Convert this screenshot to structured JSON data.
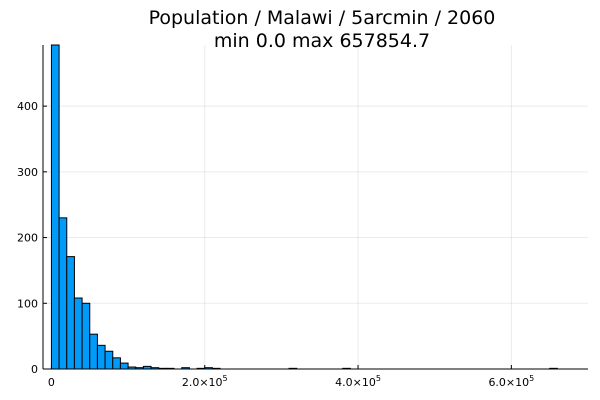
{
  "chart_data": {
    "type": "bar",
    "title_lines": [
      "Population / Malawi / 5arcmin / 2060",
      "min 0.0  max 657854.7"
    ],
    "xlabel": "",
    "ylabel": "",
    "bar_color": "#009af9",
    "bin_width": 10000,
    "xlim": [
      -11000,
      700000
    ],
    "ylim": [
      0,
      493
    ],
    "grid": true,
    "legend": "none",
    "x_ticks": [
      {
        "value": 0,
        "mantissa": "0",
        "exponent": ""
      },
      {
        "value": 200000,
        "mantissa": "2.0×10",
        "exponent": "5"
      },
      {
        "value": 400000,
        "mantissa": "4.0×10",
        "exponent": "5"
      },
      {
        "value": 600000,
        "mantissa": "6.0×10",
        "exponent": "5"
      }
    ],
    "y_ticks": [
      0,
      100,
      200,
      300,
      400
    ],
    "bins": [
      {
        "x": 0,
        "count": 493
      },
      {
        "x": 10000,
        "count": 230
      },
      {
        "x": 20000,
        "count": 171
      },
      {
        "x": 30000,
        "count": 108
      },
      {
        "x": 40000,
        "count": 100
      },
      {
        "x": 50000,
        "count": 53
      },
      {
        "x": 60000,
        "count": 36
      },
      {
        "x": 70000,
        "count": 27
      },
      {
        "x": 80000,
        "count": 17
      },
      {
        "x": 90000,
        "count": 9
      },
      {
        "x": 100000,
        "count": 3
      },
      {
        "x": 110000,
        "count": 2
      },
      {
        "x": 120000,
        "count": 4
      },
      {
        "x": 130000,
        "count": 2
      },
      {
        "x": 140000,
        "count": 1
      },
      {
        "x": 150000,
        "count": 1
      },
      {
        "x": 170000,
        "count": 2
      },
      {
        "x": 190000,
        "count": 1
      },
      {
        "x": 200000,
        "count": 2
      },
      {
        "x": 210000,
        "count": 1
      },
      {
        "x": 310000,
        "count": 1
      },
      {
        "x": 380000,
        "count": 1
      },
      {
        "x": 650000,
        "count": 1
      }
    ]
  }
}
